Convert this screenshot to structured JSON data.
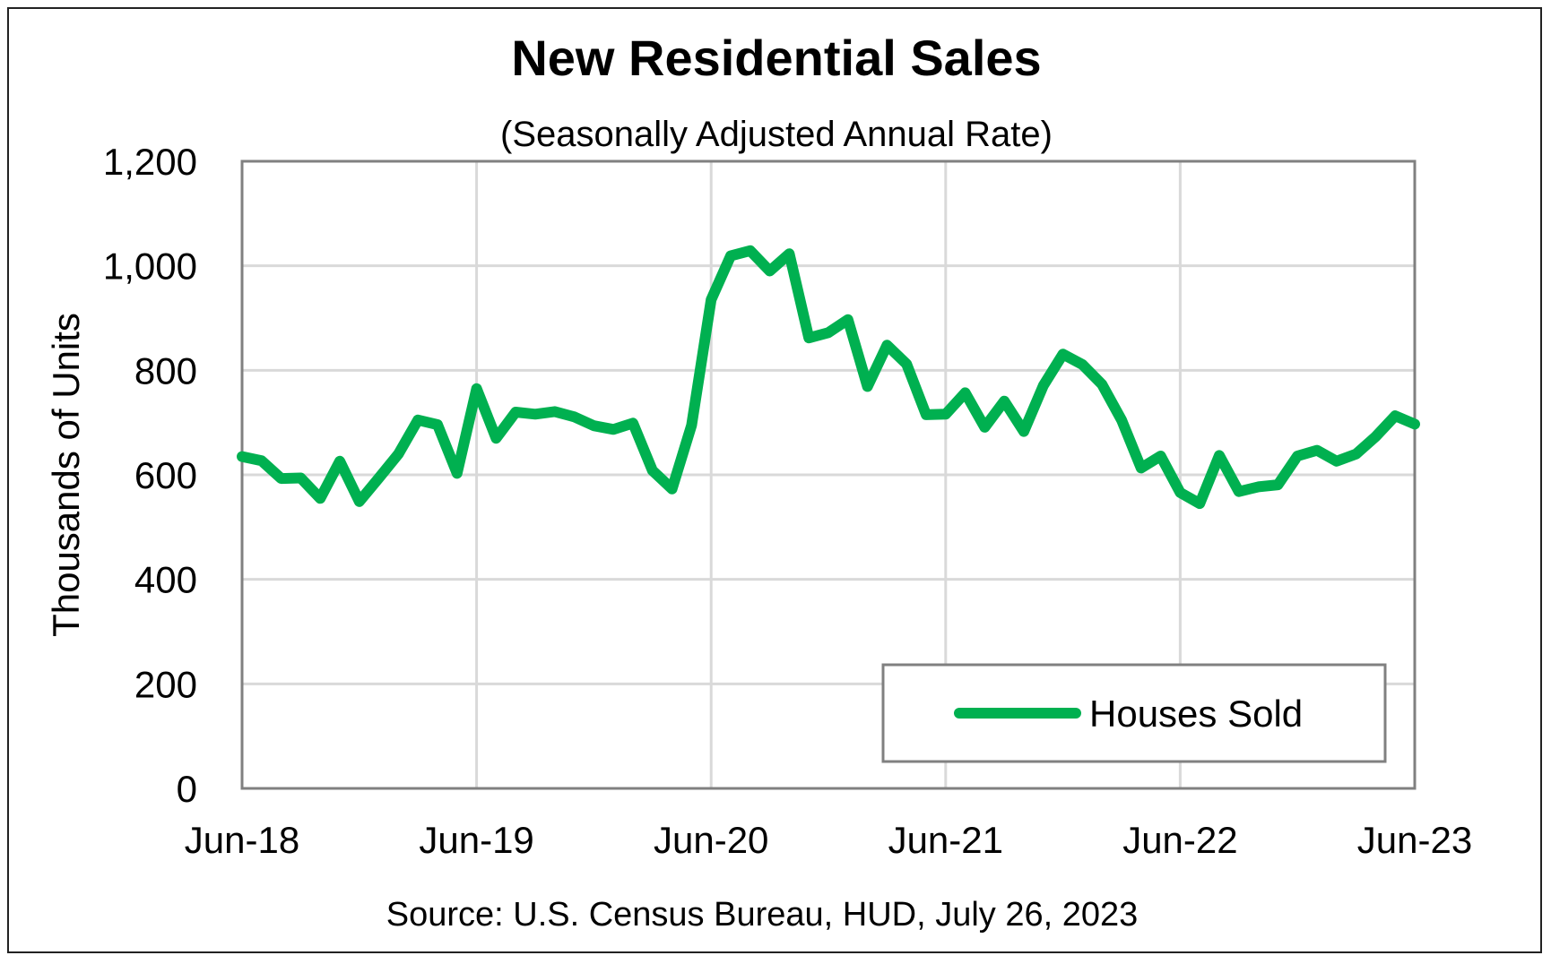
{
  "chart_data": {
    "type": "line",
    "title": "New Residential Sales",
    "subtitle": "(Seasonally Adjusted Annual Rate)",
    "source": "Source:  U.S. Census Bureau, HUD, July 26, 2023",
    "ylabel": "Thousands of Units",
    "xlabel": "",
    "ylim": [
      0,
      1200
    ],
    "yticks": [
      0,
      200,
      400,
      600,
      800,
      1000,
      1200
    ],
    "ytick_labels": [
      "0",
      "200",
      "400",
      "600",
      "800",
      "1,000",
      "1,200"
    ],
    "xtick_labels": [
      "Jun-18",
      "Jun-19",
      "Jun-20",
      "Jun-21",
      "Jun-22",
      "Jun-23"
    ],
    "x_start": "2018-06",
    "x_end": "2023-06",
    "grid": true,
    "legend_position": "bottom-right",
    "series": [
      {
        "name": "Houses Sold",
        "color": "#00b050",
        "x": [
          "2018-06",
          "2018-07",
          "2018-08",
          "2018-09",
          "2018-10",
          "2018-11",
          "2018-12",
          "2019-01",
          "2019-02",
          "2019-03",
          "2019-04",
          "2019-05",
          "2019-06",
          "2019-07",
          "2019-08",
          "2019-09",
          "2019-10",
          "2019-11",
          "2019-12",
          "2020-01",
          "2020-02",
          "2020-03",
          "2020-04",
          "2020-05",
          "2020-06",
          "2020-07",
          "2020-08",
          "2020-09",
          "2020-10",
          "2020-11",
          "2020-12",
          "2021-01",
          "2021-02",
          "2021-03",
          "2021-04",
          "2021-05",
          "2021-06",
          "2021-07",
          "2021-08",
          "2021-09",
          "2021-10",
          "2021-11",
          "2021-12",
          "2022-01",
          "2022-02",
          "2022-03",
          "2022-04",
          "2022-05",
          "2022-06",
          "2022-07",
          "2022-08",
          "2022-09",
          "2022-10",
          "2022-11",
          "2022-12",
          "2023-01",
          "2023-02",
          "2023-03",
          "2023-04",
          "2023-05",
          "2023-06"
        ],
        "values": [
          635,
          627,
          593,
          594,
          555,
          626,
          549,
          594,
          640,
          705,
          696,
          603,
          765,
          670,
          720,
          716,
          721,
          711,
          694,
          687,
          699,
          608,
          573,
          695,
          935,
          1019,
          1029,
          990,
          1023,
          862,
          872,
          897,
          769,
          848,
          812,
          715,
          716,
          757,
          691,
          741,
          683,
          771,
          831,
          811,
          773,
          705,
          613,
          636,
          566,
          545,
          637,
          568,
          577,
          581,
          636,
          647,
          626,
          640,
          673,
          713,
          697
        ]
      }
    ]
  }
}
